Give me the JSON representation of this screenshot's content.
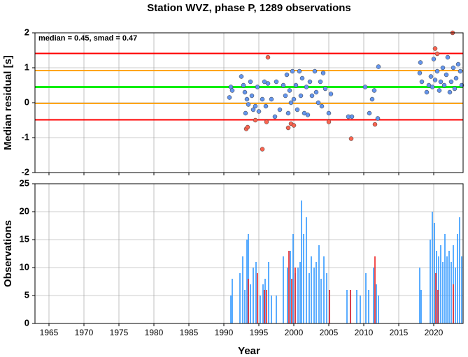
{
  "chart_data": [
    {
      "type": "scatter",
      "title": "Station WVZ, phase P, 1289 observations",
      "annotation": "median = 0.45, smad = 0.47",
      "ylabel": "Median residual [s]",
      "xlim": [
        1963,
        2024.2
      ],
      "ylim": [
        -2,
        2
      ],
      "xticks": [
        1965,
        1970,
        1975,
        1980,
        1985,
        1990,
        1995,
        2000,
        2005,
        2010,
        2015,
        2020
      ],
      "yticks": [
        -2,
        -1,
        0,
        1,
        2
      ],
      "grid": true,
      "reference_lines": [
        {
          "value": 1.41,
          "color": "#ff0000"
        },
        {
          "value": 0.92,
          "color": "#ffa500"
        },
        {
          "value": 0.45,
          "color": "#00ee00"
        },
        {
          "value": -0.02,
          "color": "#ffa500"
        },
        {
          "value": -0.49,
          "color": "#ff0000"
        }
      ],
      "series": [
        {
          "color": "#6495ed",
          "x": [
            1990.8,
            1991,
            1991.2,
            1992.5,
            1992.8,
            1993,
            1993.1,
            1993.3,
            1993.5,
            1993.8,
            1994,
            1994.2,
            1994.5,
            1994.8,
            1995,
            1995.5,
            1995.8,
            1996,
            1996.3,
            1996.8,
            1997.3,
            1997.5,
            1998,
            1998.5,
            1998.8,
            1999,
            1999.2,
            1999.4,
            1999.6,
            1999.8,
            2000,
            2000.3,
            2000.5,
            2000.8,
            2001,
            2001.2,
            2001.5,
            2001.8,
            2002,
            2002.3,
            2002.6,
            2003,
            2003.2,
            2003.5,
            2003.8,
            2004,
            2004.2,
            2004.5,
            2005,
            2005.3,
            2007.8,
            2008.3,
            2010.2,
            2010.8,
            2011.2,
            2011.5,
            2012,
            2012.1,
            2018,
            2018.3,
            2018.1,
            2019,
            2019.3,
            2019.6,
            2019.8,
            2020,
            2020.2,
            2020.5,
            2020.8,
            2021,
            2021.3,
            2021.5,
            2021.8,
            2022,
            2022.3,
            2022.5,
            2022.8,
            2023,
            2023.2,
            2023.5,
            2023.8,
            2024
          ],
          "values": [
            0.15,
            0.45,
            0.35,
            0.75,
            0.5,
            0.3,
            -0.3,
            0.1,
            -0.05,
            0.6,
            0.2,
            -0.2,
            -0.1,
            0.45,
            -0.25,
            0.1,
            0.6,
            -0.1,
            0.55,
            0.1,
            -0.4,
            0.6,
            -0.2,
            0.5,
            0.2,
            0.8,
            -0.3,
            0.35,
            0,
            0.9,
            0.1,
            0.5,
            -0.2,
            0.9,
            0.2,
            0.7,
            -0.3,
            0.45,
            -0.35,
            0.6,
            0.2,
            0.9,
            0.3,
            0,
            0.6,
            -0.1,
            0.85,
            0.4,
            -0.3,
            0.25,
            -0.4,
            -0.4,
            0.45,
            -0.3,
            0.1,
            0.35,
            -0.45,
            1.03,
            0.85,
            0.6,
            1.15,
            0.3,
            0.5,
            0.75,
            0.45,
            1.25,
            0.65,
            0.9,
            0.35,
            0.6,
            1,
            0.5,
            0.8,
            1.3,
            0.3,
            0.6,
            1,
            0.4,
            0.7,
            1.1,
            0.9,
            0.5
          ]
        },
        {
          "color": "#fa6450",
          "x": [
            1993.2,
            1993.4,
            1994.5,
            1995.5,
            1996.1,
            1996.3,
            1999.2,
            1999.6,
            2000,
            2005,
            2008.2,
            2011.6,
            2020.2,
            2020.5,
            2022.7
          ],
          "values": [
            -0.75,
            -0.7,
            -0.5,
            -1.33,
            -0.55,
            1.3,
            -0.72,
            -0.6,
            -0.65,
            -0.55,
            -1.03,
            -0.62,
            1.55,
            1.4,
            2
          ]
        }
      ]
    },
    {
      "type": "bar",
      "xlabel": "Year",
      "ylabel": "Observations",
      "xlim": [
        1963,
        2024.2
      ],
      "ylim": [
        0,
        25
      ],
      "xticks": [
        1965,
        1970,
        1975,
        1980,
        1985,
        1990,
        1995,
        2000,
        2005,
        2010,
        2015,
        2020
      ],
      "yticks": [
        0,
        5,
        10,
        15,
        20,
        25
      ],
      "grid": true,
      "series": [
        {
          "color": "#3399ff",
          "x": [
            1991,
            1991.2,
            1992.3,
            1992.7,
            1993,
            1993.3,
            1993.5,
            1993.8,
            1994.2,
            1994.6,
            1995.2,
            1995.6,
            1995.9,
            1996.4,
            1996.8,
            1997.5,
            1998.5,
            1999.1,
            1999.5,
            1999.9,
            2000.2,
            2000.6,
            2000.9,
            2001.1,
            2001.4,
            2001.8,
            2002.2,
            2002.5,
            2002.9,
            2003.2,
            2003.6,
            2003.9,
            2004.3,
            2004.7,
            2005.1,
            2007.6,
            2008.1,
            2009,
            2009.5,
            2010.3,
            2010.7,
            2011.4,
            2011.8,
            2012.1,
            2018,
            2018.2,
            2019.5,
            2019.8,
            2020.1,
            2020.4,
            2020.7,
            2021,
            2021.3,
            2021.6,
            2021.9,
            2022.2,
            2022.5,
            2022.8,
            2023.1,
            2023.4,
            2023.7,
            2024
          ],
          "values": [
            5,
            8,
            9,
            12,
            6,
            15,
            16,
            7,
            10,
            11,
            5,
            7,
            8,
            11,
            5,
            5,
            12,
            10,
            13,
            16,
            9,
            10,
            11,
            22,
            16,
            19,
            9,
            12,
            10,
            11,
            14,
            8,
            12,
            9,
            6,
            6,
            6,
            6,
            5,
            9,
            6,
            10,
            7,
            5,
            10,
            6,
            15,
            20,
            18,
            13,
            12,
            14,
            11,
            16,
            12,
            13,
            11,
            14,
            10,
            16,
            19,
            12
          ]
        },
        {
          "color": "#ee2222",
          "x": [
            1993.5,
            1994.8,
            1995.8,
            1996.1,
            1999.3,
            1999.7,
            2000.2,
            2005.1,
            2008.1,
            2011.6,
            2020.3,
            2020.6,
            2022.8
          ],
          "values": [
            8,
            9,
            6,
            6,
            13,
            8,
            10,
            6,
            6,
            12,
            9,
            6,
            7
          ]
        }
      ]
    }
  ]
}
